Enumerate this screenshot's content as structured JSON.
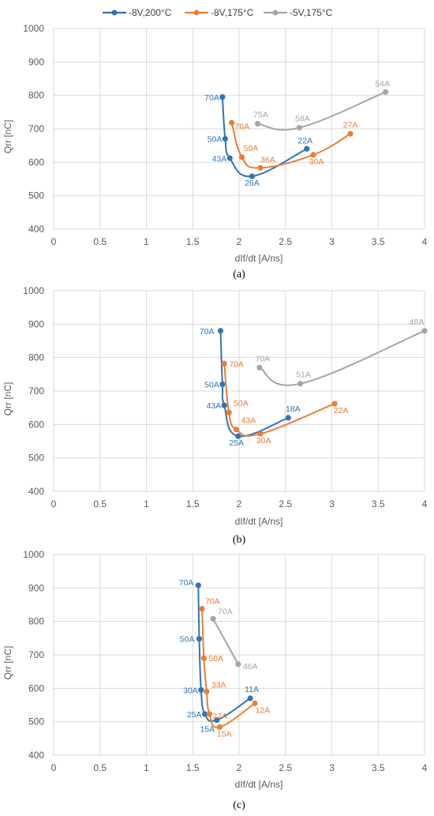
{
  "legend": {
    "position": "top-center",
    "entries": [
      {
        "name": "-8V,200°C",
        "color": "#2e75b6"
      },
      {
        "name": "-8V,175°C",
        "color": "#ed7d31"
      },
      {
        "name": "-5V,175°C",
        "color": "#a5a5a5"
      }
    ]
  },
  "chart_data": [
    {
      "type": "line",
      "caption": "(a)",
      "xlabel": "dIf/dt [A/ns]",
      "ylabel": "Qrr [nC]",
      "xlim": [
        0,
        4
      ],
      "ylim": [
        400,
        1000
      ],
      "xticks": [
        "0",
        "0.5",
        "1",
        "1.5",
        "2",
        "2.5",
        "3",
        "3.5",
        "4"
      ],
      "yticks": [
        "400",
        "500",
        "600",
        "700",
        "800",
        "900",
        "1000"
      ],
      "grid": true,
      "series": [
        {
          "name": "-8V,200°C",
          "points": [
            {
              "x": 1.82,
              "y": 795,
              "label": "70A"
            },
            {
              "x": 1.85,
              "y": 670,
              "label": "50A"
            },
            {
              "x": 1.9,
              "y": 612,
              "label": "43A"
            },
            {
              "x": 2.14,
              "y": 558,
              "label": "26A"
            },
            {
              "x": 2.73,
              "y": 640,
              "label": "22A"
            }
          ]
        },
        {
          "name": "-8V,175°C",
          "points": [
            {
              "x": 1.92,
              "y": 718,
              "label": "70A"
            },
            {
              "x": 2.03,
              "y": 615,
              "label": "50A"
            },
            {
              "x": 2.23,
              "y": 583,
              "label": "36A"
            },
            {
              "x": 2.8,
              "y": 622,
              "label": "30A"
            },
            {
              "x": 3.2,
              "y": 685,
              "label": "27A"
            }
          ]
        },
        {
          "name": "-5V,175°C",
          "points": [
            {
              "x": 2.2,
              "y": 715,
              "label": "75A"
            },
            {
              "x": 2.65,
              "y": 703,
              "label": "58A"
            },
            {
              "x": 3.58,
              "y": 810,
              "label": "54A"
            }
          ]
        }
      ]
    },
    {
      "type": "line",
      "caption": "(b)",
      "xlabel": "dIf/dt [A/ns]",
      "ylabel": "Qrr [nC]",
      "xlim": [
        0,
        4
      ],
      "ylim": [
        400,
        1000
      ],
      "xticks": [
        "0",
        "0.5",
        "1",
        "1.5",
        "2",
        "2.5",
        "3",
        "3.5",
        "4"
      ],
      "yticks": [
        "400",
        "500",
        "600",
        "700",
        "800",
        "900",
        "1000"
      ],
      "grid": true,
      "series": [
        {
          "name": "-8V,200°C",
          "points": [
            {
              "x": 1.8,
              "y": 880,
              "label": "70A"
            },
            {
              "x": 1.82,
              "y": 720,
              "label": "50A"
            },
            {
              "x": 1.84,
              "y": 657,
              "label": "43A"
            },
            {
              "x": 1.99,
              "y": 565,
              "label": "25A"
            },
            {
              "x": 2.53,
              "y": 620,
              "label": "18A"
            }
          ]
        },
        {
          "name": "-8V,175°C",
          "points": [
            {
              "x": 1.84,
              "y": 782,
              "label": "70A"
            },
            {
              "x": 1.89,
              "y": 636,
              "label": "50A"
            },
            {
              "x": 1.97,
              "y": 585,
              "label": "43A"
            },
            {
              "x": 2.23,
              "y": 572,
              "label": "30A"
            },
            {
              "x": 3.03,
              "y": 662,
              "label": "22A"
            }
          ]
        },
        {
          "name": "-5V,175°C",
          "points": [
            {
              "x": 2.22,
              "y": 770,
              "label": "70A"
            },
            {
              "x": 2.66,
              "y": 722,
              "label": "51A"
            },
            {
              "x": 4.0,
              "y": 880,
              "label": "48A"
            }
          ]
        }
      ]
    },
    {
      "type": "line",
      "caption": "(c)",
      "xlabel": "dIf/dt [A/ns]",
      "ylabel": "Qrr [nC]",
      "xlim": [
        0,
        4
      ],
      "ylim": [
        400,
        1000
      ],
      "xticks": [
        "0",
        "0.5",
        "1",
        "1.5",
        "2",
        "2.5",
        "3",
        "3.5",
        "4"
      ],
      "yticks": [
        "400",
        "500",
        "600",
        "700",
        "800",
        "900",
        "1000"
      ],
      "grid": true,
      "series": [
        {
          "name": "-8V,200°C",
          "points": [
            {
              "x": 1.56,
              "y": 908,
              "label": "70A"
            },
            {
              "x": 1.57,
              "y": 748,
              "label": "50A"
            },
            {
              "x": 1.59,
              "y": 595,
              "label": "30A"
            },
            {
              "x": 1.63,
              "y": 523,
              "label": "25A"
            },
            {
              "x": 1.76,
              "y": 505,
              "label": "15A"
            },
            {
              "x": 2.12,
              "y": 570,
              "label": "11A"
            }
          ]
        },
        {
          "name": "-8V,175°C",
          "points": [
            {
              "x": 1.6,
              "y": 838,
              "label": "70A"
            },
            {
              "x": 1.62,
              "y": 690,
              "label": "50A"
            },
            {
              "x": 1.65,
              "y": 590,
              "label": "33A"
            },
            {
              "x": 1.68,
              "y": 523,
              "label": "27A"
            },
            {
              "x": 1.79,
              "y": 484,
              "label": "15A"
            },
            {
              "x": 2.17,
              "y": 555,
              "label": "12A"
            }
          ]
        },
        {
          "name": "-5V,175°C",
          "points": [
            {
              "x": 1.72,
              "y": 808,
              "label": "70A"
            },
            {
              "x": 1.99,
              "y": 672,
              "label": "46A"
            }
          ]
        }
      ]
    }
  ]
}
